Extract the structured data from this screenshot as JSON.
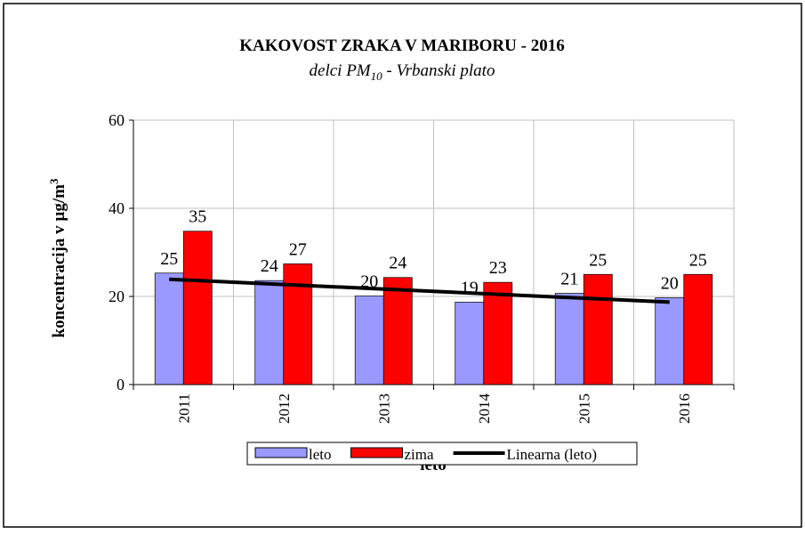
{
  "chart_data": {
    "type": "bar",
    "title": "KAKOVOST ZRAKA V MARIBORU - 2016",
    "subtitle": [
      "delci PM",
      "10",
      " - Vrbanski plato"
    ],
    "y_label": [
      "koncentracija v µg/m",
      "3"
    ],
    "x_label": "leto",
    "categories": [
      "2011",
      "2012",
      "2013",
      "2014",
      "2015",
      "2016"
    ],
    "series": [
      {
        "name": "leto",
        "color": "#9999ff",
        "values": [
          25.3,
          23.6,
          20.1,
          18.7,
          20.7,
          19.7
        ],
        "value_labels": [
          "25",
          "24",
          "20",
          "19",
          "21",
          "20"
        ]
      },
      {
        "name": "zima",
        "color": "#ff0000",
        "values": [
          34.8,
          27.4,
          24.3,
          23.2,
          25.0,
          25.0
        ],
        "value_labels": [
          "35",
          "27",
          "24",
          "23",
          "25",
          "25"
        ]
      },
      {
        "name": "Linearna (leto)",
        "type": "line",
        "color": "#000000",
        "values": [
          23.9,
          22.86,
          21.82,
          20.78,
          19.74,
          18.7
        ]
      }
    ],
    "ylim": [
      0,
      60
    ],
    "yticks": [
      0,
      20,
      40,
      60
    ],
    "grid": true
  }
}
